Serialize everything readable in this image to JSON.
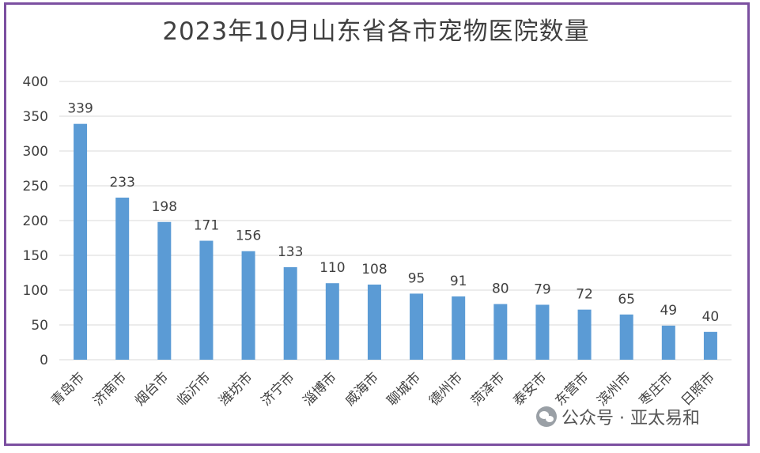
{
  "chart_data": {
    "type": "bar",
    "title": "2023年10月山东省各市宠物医院数量",
    "xlabel": "",
    "ylabel": "",
    "ylim": [
      0,
      400
    ],
    "yticks": [
      0,
      50,
      100,
      150,
      200,
      250,
      300,
      350,
      400
    ],
    "grid": true,
    "categories": [
      "青岛市",
      "济南市",
      "烟台市",
      "临沂市",
      "潍坊市",
      "济宁市",
      "淄博市",
      "威海市",
      "聊城市",
      "德州市",
      "菏泽市",
      "泰安市",
      "东营市",
      "滨州市",
      "枣庄市",
      "日照市"
    ],
    "values": [
      339,
      233,
      198,
      171,
      156,
      133,
      110,
      108,
      95,
      91,
      80,
      79,
      72,
      65,
      49,
      40
    ],
    "bar_color": "#5b9bd5"
  },
  "watermark": {
    "text": "公众号 · 亚太易和"
  }
}
